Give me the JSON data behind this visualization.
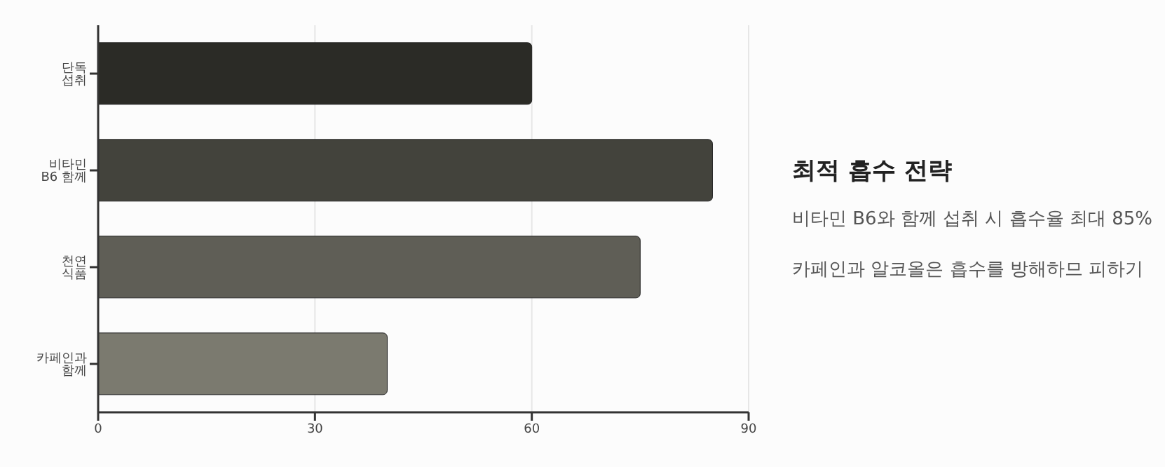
{
  "chart_data": {
    "type": "bar",
    "orientation": "horizontal",
    "title": "최적 흡수 전략",
    "annotations": [
      "비타민 B6와 함께 섭취 시 흡수율 최대 85%",
      "카페인과 알코올은 흡수를 방해하므 피하기"
    ],
    "categories": [
      "단독 섭취",
      "비타민 B6 함께",
      "천연 식품",
      "카페인과 함께"
    ],
    "values": [
      60,
      85,
      75,
      40
    ],
    "colors": [
      "#2b2b26",
      "#43433c",
      "#5f5e56",
      "#7b7a6f"
    ],
    "xlim": [
      0,
      90
    ],
    "xticks": [
      0,
      30,
      60,
      90
    ],
    "grid": "x"
  }
}
